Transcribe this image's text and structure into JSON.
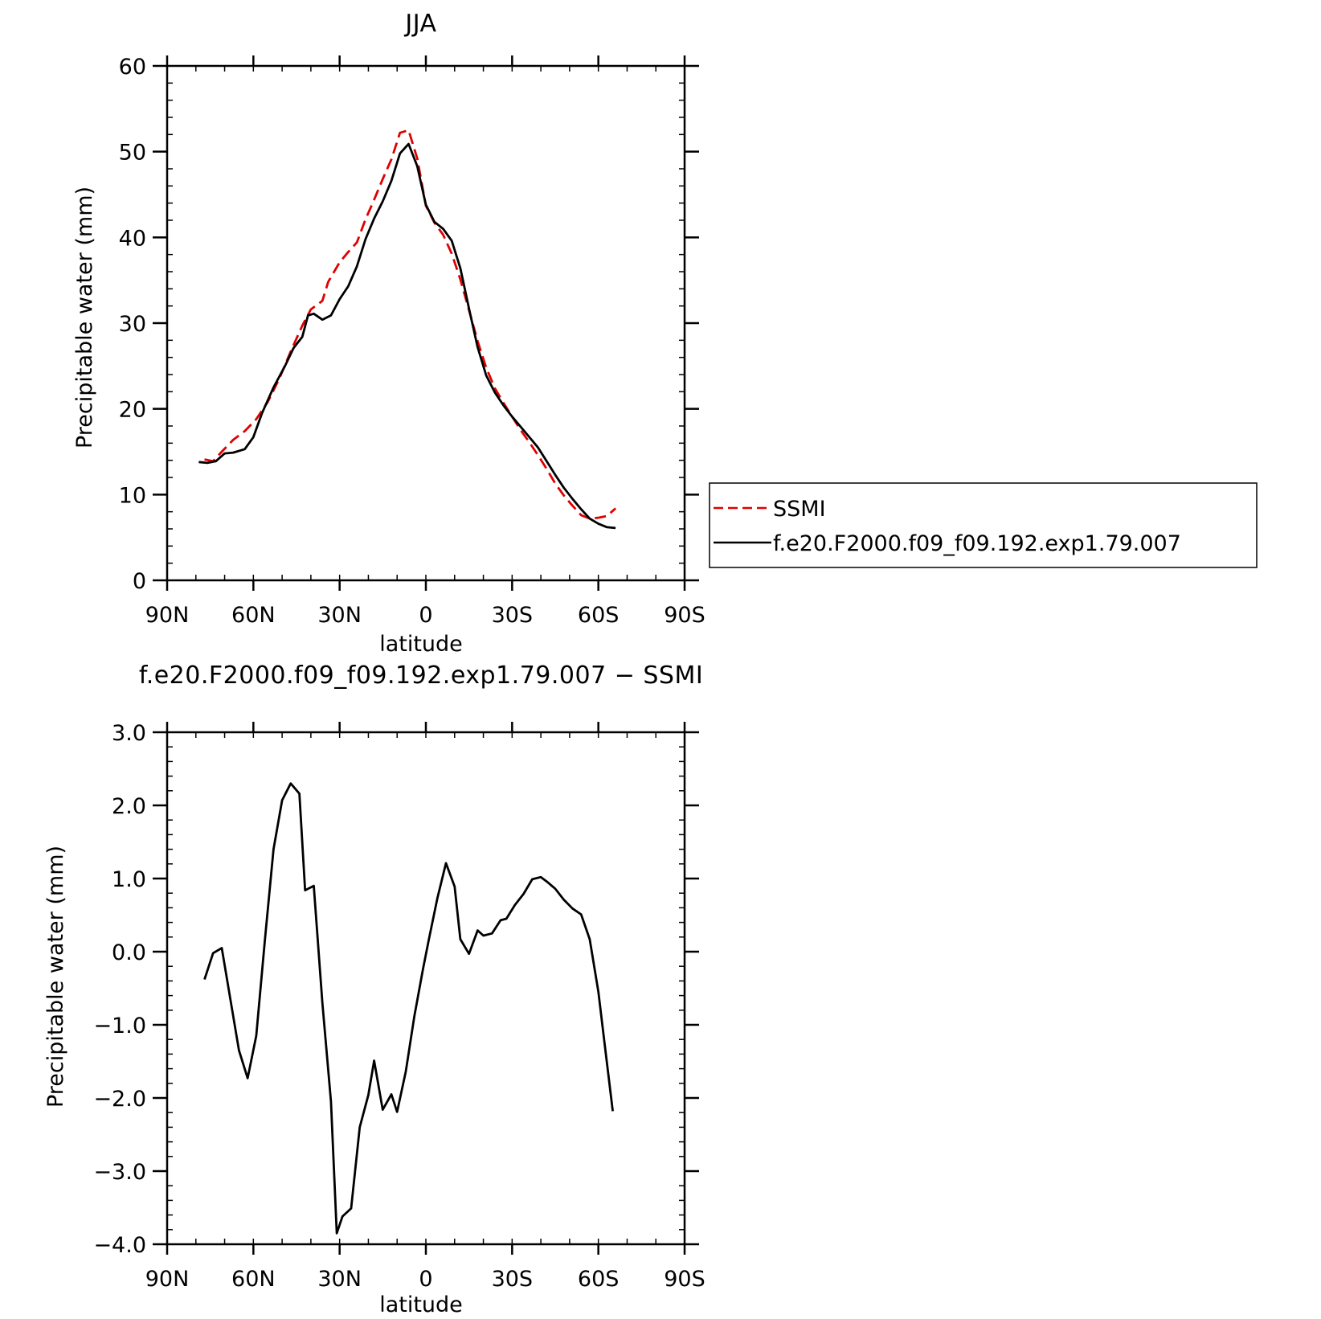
{
  "chart_data": [
    {
      "type": "line",
      "title": "JJA",
      "xlabel": "latitude",
      "ylabel": "Precipitable water (mm)",
      "xlim": [
        90,
        -90
      ],
      "ylim": [
        0,
        60
      ],
      "x_ticks": [
        90,
        60,
        30,
        0,
        -30,
        -60,
        -90
      ],
      "x_tick_labels": [
        "90N",
        "60N",
        "30N",
        "0",
        "30S",
        "60S",
        "90S"
      ],
      "y_ticks": [
        0,
        10,
        20,
        30,
        40,
        50,
        60
      ],
      "y_tick_labels": [
        "0",
        "10",
        "20",
        "30",
        "40",
        "50",
        "60"
      ],
      "legend_position": "right",
      "series": [
        {
          "name": "SSMI",
          "color": "#e00000",
          "dash": "dashed",
          "x": [
            77,
            74,
            71,
            67,
            63,
            59,
            55,
            51,
            47,
            43,
            40,
            36,
            34,
            30,
            27,
            24,
            21,
            18,
            15,
            12,
            9,
            6,
            3,
            0,
            -3,
            -6,
            -9,
            -12,
            -15,
            -18,
            -21,
            -24,
            -27,
            -30,
            -33,
            -36,
            -39,
            -42,
            -45,
            -48,
            -51,
            -54,
            -57,
            -60,
            -63,
            -66
          ],
          "y": [
            14.1,
            13.9,
            15.0,
            16.4,
            17.4,
            18.8,
            20.8,
            23.5,
            26.7,
            29.7,
            31.6,
            32.6,
            34.8,
            37.1,
            38.3,
            39.4,
            42.1,
            44.4,
            46.8,
            49.1,
            52.2,
            52.5,
            49.2,
            43.7,
            41.7,
            40.3,
            38.1,
            35.1,
            31.5,
            27.9,
            24.8,
            22.4,
            20.7,
            19.1,
            17.5,
            16.1,
            14.6,
            13.0,
            11.3,
            9.9,
            8.7,
            7.6,
            7.2,
            7.3,
            7.5,
            8.4
          ]
        },
        {
          "name": "f.e20.F2000.f09_f09.192.exp1.79.007",
          "color": "#000000",
          "dash": "solid",
          "x": [
            79,
            76,
            73,
            70,
            67,
            63,
            60,
            57,
            53,
            49,
            46,
            43,
            41,
            39,
            36,
            33,
            30,
            27,
            24,
            21,
            18,
            15,
            12,
            9,
            6,
            3,
            0,
            -3,
            -6,
            -9,
            -12,
            -15,
            -18,
            -21,
            -24,
            -27,
            -30,
            -33,
            -36,
            -39,
            -42,
            -45,
            -48,
            -51,
            -54,
            -57,
            -60,
            -63,
            -66
          ],
          "y": [
            13.8,
            13.7,
            13.9,
            14.8,
            14.9,
            15.3,
            16.7,
            19.5,
            22.5,
            25.0,
            27.1,
            28.4,
            30.9,
            31.1,
            30.4,
            30.9,
            32.8,
            34.3,
            36.6,
            39.8,
            42.2,
            44.2,
            46.6,
            49.8,
            50.9,
            48.3,
            43.8,
            41.8,
            41.0,
            39.6,
            36.4,
            31.7,
            27.2,
            23.9,
            21.9,
            20.4,
            19.1,
            17.9,
            16.7,
            15.5,
            13.9,
            12.3,
            10.8,
            9.5,
            8.3,
            7.2,
            6.6,
            6.2,
            6.1
          ]
        }
      ]
    },
    {
      "type": "line",
      "title": "f.e20.F2000.f09_f09.192.exp1.79.007 − SSMI",
      "xlabel": "latitude",
      "ylabel": "Precipitable water (mm)",
      "xlim": [
        90,
        -90
      ],
      "ylim": [
        -4.0,
        3.0
      ],
      "x_ticks": [
        90,
        60,
        30,
        0,
        -30,
        -60,
        -90
      ],
      "x_tick_labels": [
        "90N",
        "60N",
        "30N",
        "0",
        "30S",
        "60S",
        "90S"
      ],
      "y_ticks": [
        3.0,
        2.0,
        1.0,
        0.0,
        -1.0,
        -2.0,
        -3.0,
        -4.0
      ],
      "y_tick_labels": [
        "3.0",
        "2.0",
        "1.0",
        "0.0",
        "−1.0",
        "−2.0",
        "−3.0",
        "−4.0"
      ],
      "series": [
        {
          "color": "#000000",
          "dash": "solid",
          "x": [
            77,
            74,
            71,
            68,
            65,
            62,
            59,
            56,
            53,
            50,
            47,
            44,
            42,
            39,
            36,
            33,
            31,
            29,
            26,
            23,
            20,
            18,
            15,
            12,
            10,
            7,
            4,
            1,
            -1,
            -4,
            -7,
            -10,
            -12,
            -15,
            -18,
            -20,
            -23,
            -26,
            -28,
            -31,
            -34,
            -37,
            -40,
            -42,
            -45,
            -48,
            -51,
            -54,
            -57,
            -60,
            -62,
            -65
          ],
          "y": [
            -0.38,
            -0.02,
            0.05,
            -0.65,
            -1.35,
            -1.73,
            -1.15,
            0.15,
            1.4,
            2.07,
            2.3,
            2.16,
            0.84,
            0.9,
            -0.7,
            -2.05,
            -3.85,
            -3.62,
            -3.51,
            -2.4,
            -1.96,
            -1.49,
            -2.16,
            -1.95,
            -2.19,
            -1.64,
            -0.88,
            -0.24,
            0.16,
            0.73,
            1.21,
            0.89,
            0.17,
            -0.03,
            0.29,
            0.22,
            0.25,
            0.43,
            0.45,
            0.64,
            0.79,
            0.99,
            1.02,
            0.96,
            0.86,
            0.71,
            0.59,
            0.51,
            0.17,
            -0.55,
            -1.2,
            -2.18
          ]
        }
      ]
    }
  ]
}
